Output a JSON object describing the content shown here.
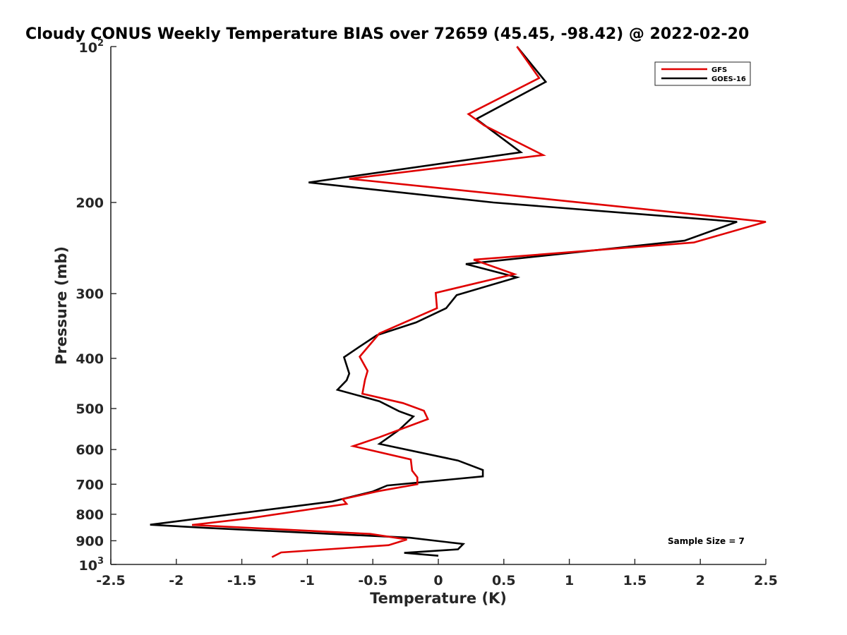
{
  "chart_data": {
    "type": "line",
    "title": "Cloudy CONUS Weekly Temperature BIAS over 72659 (45.45, -98.42) @ 2022-02-20",
    "xlabel": "Temperature (K)",
    "ylabel": "Pressure (mb)",
    "xlim": [
      -2.5,
      2.5
    ],
    "ylim": [
      100,
      1000
    ],
    "yscale": "log",
    "y_reversed": true,
    "grid": false,
    "legend_position": "top-right",
    "x_ticks": [
      "-2.5",
      "-2",
      "-1.5",
      "-1",
      "-0.5",
      "0",
      "0.5",
      "1",
      "1.5",
      "2",
      "2.5"
    ],
    "y_ticks": [
      "200",
      "300",
      "400",
      "500",
      "600",
      "700",
      "800",
      "900"
    ],
    "y_tick_min_base": "10",
    "y_tick_min_exp": "2",
    "y_tick_max_base": "10",
    "y_tick_max_exp": "3",
    "annotation": "Sample Size = 7",
    "series": [
      {
        "name": "GFS",
        "color": "#e00000",
        "points": [
          [
            0.6,
            100
          ],
          [
            0.77,
            115
          ],
          [
            0.23,
            135
          ],
          [
            0.35,
            142
          ],
          [
            0.8,
            162
          ],
          [
            -0.68,
            180
          ],
          [
            1.0,
            199
          ],
          [
            2.5,
            218
          ],
          [
            1.95,
            239
          ],
          [
            0.27,
            258
          ],
          [
            0.58,
            275
          ],
          [
            -0.02,
            299
          ],
          [
            -0.01,
            320
          ],
          [
            -0.45,
            358
          ],
          [
            -0.6,
            397
          ],
          [
            -0.54,
            423
          ],
          [
            -0.56,
            440
          ],
          [
            -0.58,
            468
          ],
          [
            -0.27,
            488
          ],
          [
            -0.11,
            505
          ],
          [
            -0.08,
            524
          ],
          [
            -0.45,
            568
          ],
          [
            -0.65,
            591
          ],
          [
            -0.21,
            627
          ],
          [
            -0.2,
            659
          ],
          [
            -0.16,
            679
          ],
          [
            -0.16,
            700
          ],
          [
            -0.46,
            722
          ],
          [
            -0.73,
            748
          ],
          [
            -0.7,
            764
          ],
          [
            -1.45,
            815
          ],
          [
            -1.88,
            839
          ],
          [
            -0.52,
            873
          ],
          [
            -0.24,
            895
          ],
          [
            -0.38,
            918
          ],
          [
            -1.2,
            948
          ],
          [
            -1.27,
            968
          ]
        ]
      },
      {
        "name": "GOES-16",
        "color": "#000000",
        "points": [
          [
            0.6,
            100
          ],
          [
            0.82,
            117
          ],
          [
            0.29,
            138
          ],
          [
            0.63,
            160
          ],
          [
            -0.99,
            183
          ],
          [
            0.42,
            200
          ],
          [
            2.28,
            218
          ],
          [
            1.88,
            237
          ],
          [
            0.21,
            263
          ],
          [
            0.6,
            279
          ],
          [
            0.14,
            302
          ],
          [
            0.06,
            320
          ],
          [
            -0.17,
            341
          ],
          [
            -0.47,
            361
          ],
          [
            -0.61,
            381
          ],
          [
            -0.72,
            398
          ],
          [
            -0.68,
            428
          ],
          [
            -0.7,
            441
          ],
          [
            -0.77,
            460
          ],
          [
            -0.45,
            484
          ],
          [
            -0.3,
            506
          ],
          [
            -0.19,
            518
          ],
          [
            -0.3,
            550
          ],
          [
            -0.45,
            585
          ],
          [
            0.15,
            630
          ],
          [
            0.34,
            657
          ],
          [
            0.34,
            676
          ],
          [
            -0.39,
            704
          ],
          [
            -0.5,
            723
          ],
          [
            -0.81,
            756
          ],
          [
            -2.2,
            838
          ],
          [
            -1.77,
            850
          ],
          [
            -0.22,
            888
          ],
          [
            0.19,
            913
          ],
          [
            0.15,
            935
          ],
          [
            -0.26,
            950
          ],
          [
            0.0,
            962
          ]
        ]
      }
    ]
  }
}
